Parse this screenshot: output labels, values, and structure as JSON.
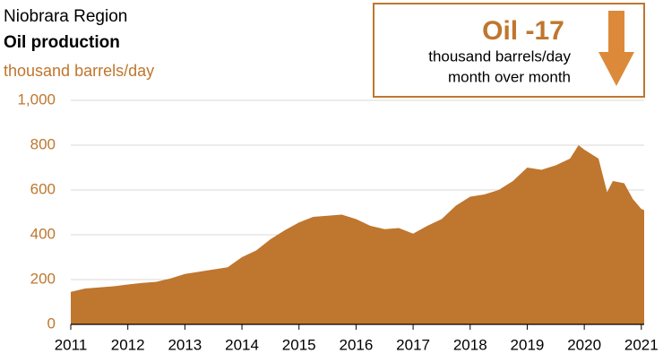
{
  "chart_data": {
    "type": "area",
    "title": "Niobrara Region",
    "subtitle": "Oil production",
    "y_label": "thousand barrels/day",
    "callout": {
      "headline": "Oil -17",
      "line1": "thousand barrels/day",
      "line2": "month over month"
    },
    "color": "#bf762e",
    "x": [
      2011,
      2011.25,
      2011.5,
      2011.75,
      2012,
      2012.25,
      2012.5,
      2012.75,
      2013,
      2013.25,
      2013.5,
      2013.75,
      2014,
      2014.25,
      2014.5,
      2014.75,
      2015,
      2015.25,
      2015.5,
      2015.75,
      2016,
      2016.25,
      2016.5,
      2016.75,
      2017,
      2017.25,
      2017.5,
      2017.75,
      2018,
      2018.25,
      2018.5,
      2018.75,
      2019,
      2019.25,
      2019.5,
      2019.75,
      2019.9,
      2020,
      2020.25,
      2020.4,
      2020.5,
      2020.7,
      2020.85,
      2021,
      2021.05
    ],
    "values": [
      145,
      160,
      165,
      170,
      178,
      185,
      190,
      205,
      225,
      235,
      245,
      255,
      300,
      330,
      380,
      420,
      455,
      480,
      485,
      490,
      470,
      440,
      425,
      430,
      405,
      440,
      470,
      530,
      570,
      580,
      600,
      640,
      700,
      690,
      710,
      740,
      800,
      780,
      740,
      590,
      640,
      630,
      560,
      515,
      510
    ],
    "xlim": [
      2011,
      2021.05
    ],
    "xticks": [
      2011,
      2012,
      2013,
      2014,
      2015,
      2016,
      2017,
      2018,
      2019,
      2020,
      2021
    ],
    "ylim": [
      0,
      1000
    ],
    "yticks": [
      0,
      200,
      400,
      600,
      800,
      {
        "value": 1000,
        "label": "1,000"
      }
    ],
    "grid": true
  }
}
